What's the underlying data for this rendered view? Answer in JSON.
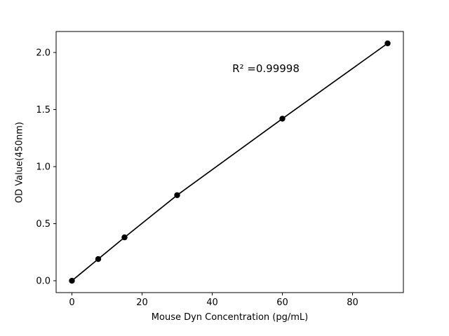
{
  "chart_data": {
    "type": "scatter",
    "title": "",
    "xlabel": "Mouse Dyn Concentration (pg/mL)",
    "ylabel": "OD Value(450nm)",
    "x": [
      0,
      7.5,
      15,
      30,
      60,
      90
    ],
    "y": [
      0.0,
      0.19,
      0.38,
      0.75,
      1.42,
      2.08
    ],
    "xlim": [
      -4.5,
      94.5
    ],
    "ylim": [
      -0.104,
      2.184
    ],
    "xticks": [
      0,
      20,
      40,
      60,
      80
    ],
    "xtick_labels": [
      "0",
      "20",
      "40",
      "60",
      "80"
    ],
    "yticks": [
      0.0,
      0.5,
      1.0,
      1.5,
      2.0
    ],
    "ytick_labels": [
      "0.0",
      "0.5",
      "1.0",
      "1.5",
      "2.0"
    ],
    "annotation": {
      "text": "R² =0.99998",
      "x_frac": 0.604,
      "y_frac_top": 0.155
    },
    "line_color": "#000000",
    "marker_color": "#000000",
    "background": "#ffffff",
    "grid": false,
    "legend": "none"
  }
}
